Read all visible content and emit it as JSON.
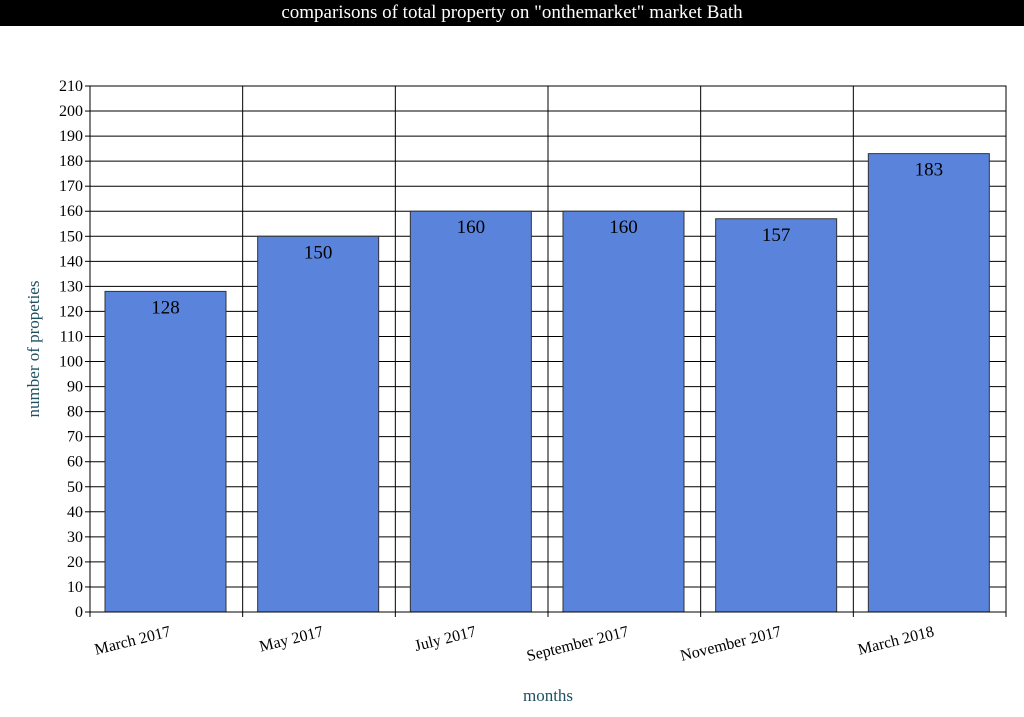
{
  "chart_data": {
    "type": "bar",
    "title": "comparisons of total property on \"onthemarket\" market Bath",
    "xlabel": "months",
    "ylabel": "number of propeties",
    "categories": [
      "March 2017",
      "May 2017",
      "July 2017",
      "September 2017",
      "November 2017",
      "March 2018"
    ],
    "values": [
      128,
      150,
      160,
      160,
      157,
      183
    ],
    "ylim": [
      0,
      210
    ],
    "ytick_step": 10,
    "grid": true,
    "legend": "none",
    "colors": {
      "bar": "#5a84dc",
      "bar_border": "#333333",
      "title_background": "#000000",
      "title_text": "#ffffff",
      "axis_title": "#1f5060"
    }
  }
}
